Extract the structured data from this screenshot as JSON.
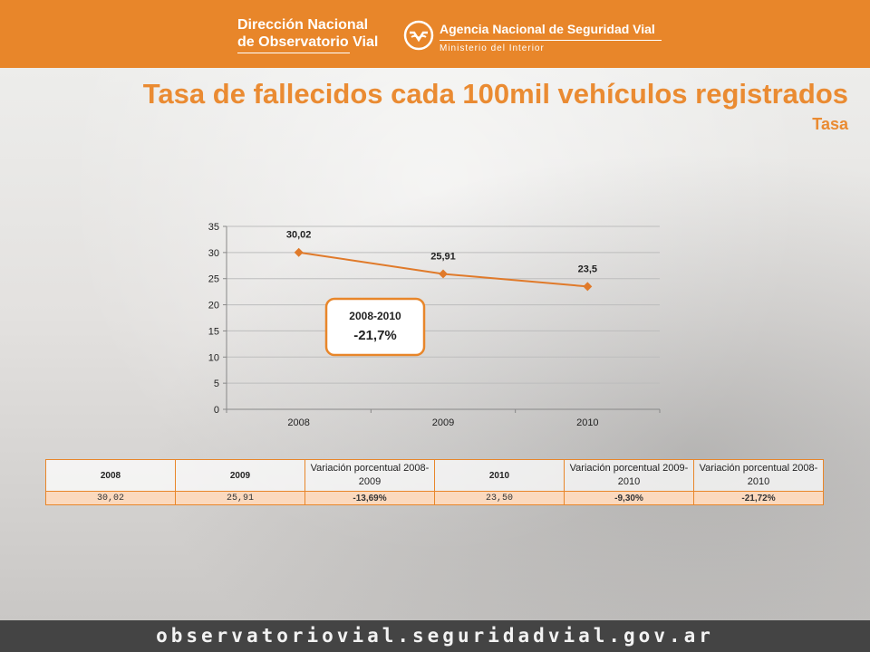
{
  "header": {
    "logo_left_line1": "Dirección Nacional",
    "logo_left_line2": "de Observatorio Vial",
    "agency": "Agencia Nacional de Seguridad Vial",
    "ministry": "Ministerio del Interior"
  },
  "title": "Tasa de fallecidos cada 100mil vehículos registrados",
  "subtitle": "Tasa",
  "colors": {
    "accent": "#e8862a",
    "line": "#e07a2a",
    "footer_bg": "#444444"
  },
  "chart_data": {
    "type": "line",
    "title": "",
    "xlabel": "",
    "ylabel": "",
    "categories": [
      "2008",
      "2009",
      "2010"
    ],
    "series": [
      {
        "values": [
          30.02,
          25.91,
          23.5
        ]
      }
    ],
    "data_labels": [
      "30,02",
      "25,91",
      "23,5"
    ],
    "ylim": [
      0,
      35
    ],
    "yticks": [
      0,
      5,
      10,
      15,
      20,
      25,
      30,
      35
    ],
    "grid": true,
    "annotation": {
      "period": "2008-2010",
      "change": "-21,7%"
    }
  },
  "table": {
    "headers": [
      "2008",
      "2009",
      "Variación porcentual 2008-2009",
      "2010",
      "Variación porcentual 2009-2010",
      "Variación porcentual 2008-2010"
    ],
    "values": [
      "30,02",
      "25,91",
      "-13,69%",
      "23,50",
      "-9,30%",
      "-21,72%"
    ]
  },
  "footer": "observatoriovial.seguridadvial.gov.ar"
}
